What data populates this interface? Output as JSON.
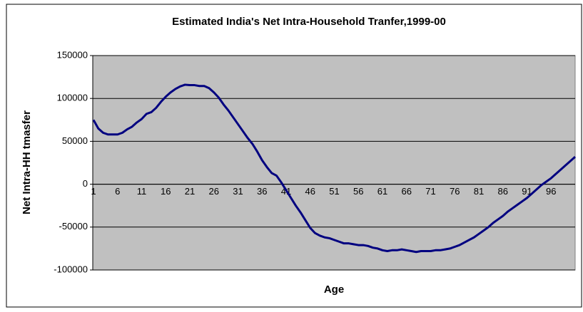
{
  "chart_data": {
    "type": "line",
    "title": "Estimated India's Net Intra-Household Tranfer,1999-00",
    "x_label": "Age",
    "y_label": "Net Intra-HH tmasfer",
    "categories": [
      "1",
      null,
      null,
      null,
      null,
      "6",
      null,
      null,
      null,
      null,
      "11",
      null,
      null,
      null,
      null,
      "16",
      null,
      null,
      null,
      null,
      "21",
      null,
      null,
      null,
      null,
      "26",
      null,
      null,
      null,
      null,
      "31",
      null,
      null,
      null,
      null,
      "36",
      null,
      null,
      null,
      null,
      "41",
      null,
      null,
      null,
      null,
      "46",
      null,
      null,
      null,
      null,
      "51",
      null,
      null,
      null,
      null,
      "56",
      null,
      null,
      null,
      null,
      "61",
      null,
      null,
      null,
      null,
      "66",
      null,
      null,
      null,
      null,
      "71",
      null,
      null,
      null,
      null,
      "76",
      null,
      null,
      null,
      null,
      "81",
      null,
      null,
      null,
      null,
      "86",
      null,
      null,
      null,
      null,
      "91",
      null,
      null,
      null,
      null,
      "96",
      null,
      null,
      null,
      null,
      null
    ],
    "series": [
      {
        "name": "Net Intra-HH transfer",
        "color": "#000080",
        "values": [
          75000,
          65000,
          60000,
          58000,
          58000,
          58000,
          60000,
          64000,
          67000,
          72000,
          76000,
          82000,
          84000,
          89000,
          96000,
          102000,
          107000,
          111000,
          114000,
          116000,
          115500,
          115500,
          114500,
          114500,
          112000,
          107000,
          101000,
          93000,
          86000,
          78000,
          70000,
          62000,
          54000,
          47000,
          38000,
          28000,
          20000,
          13000,
          10000,
          2000,
          -7000,
          -16000,
          -25000,
          -33000,
          -42000,
          -51000,
          -57000,
          -60000,
          -62000,
          -63000,
          -65000,
          -67000,
          -69000,
          -69000,
          -70000,
          -71000,
          -71000,
          -72000,
          -74000,
          -75000,
          -77000,
          -78000,
          -77000,
          -77000,
          -76000,
          -77000,
          -78000,
          -79000,
          -78000,
          -78000,
          -78000,
          -77000,
          -77000,
          -76000,
          -75000,
          -73000,
          -71000,
          -68000,
          -65000,
          -62000,
          -58000,
          -54000,
          -50000,
          -45000,
          -41000,
          -37000,
          -32000,
          -28000,
          -24000,
          -20000,
          -16000,
          -11000,
          -6000,
          -1000,
          3000,
          7000,
          12000,
          17000,
          22000,
          27000,
          32000
        ]
      }
    ],
    "ylim": [
      -100000,
      150000
    ],
    "yticks": [
      -100000,
      -50000,
      0,
      50000,
      100000,
      150000
    ],
    "grid": true,
    "plot_background": "#c0c0c0"
  }
}
